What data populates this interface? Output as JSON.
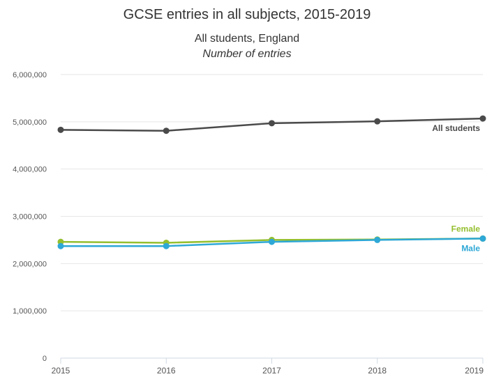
{
  "chart_data": {
    "type": "line",
    "title": "GCSE entries in all subjects, 2015-2019",
    "subtitle": "All students, England",
    "subtitle2": "Number of entries",
    "xlabel": "",
    "ylabel": "",
    "x": [
      "2015",
      "2016",
      "2017",
      "2018",
      "2019"
    ],
    "ylim": [
      0,
      6000000
    ],
    "yticks": [
      0,
      1000000,
      2000000,
      3000000,
      4000000,
      5000000,
      6000000
    ],
    "ytick_labels": [
      "0",
      "1,000,000",
      "2,000,000",
      "3,000,000",
      "4,000,000",
      "5,000,000",
      "6,000,000"
    ],
    "grid": true,
    "series": [
      {
        "name": "All students",
        "color": "#4a4a4a",
        "values": [
          4830000,
          4810000,
          4970000,
          5010000,
          5070000
        ]
      },
      {
        "name": "Female",
        "color": "#95bf2f",
        "values": [
          2460000,
          2440000,
          2500000,
          2510000,
          2530000
        ]
      },
      {
        "name": "Male",
        "color": "#2ea8d6",
        "values": [
          2370000,
          2370000,
          2460000,
          2500000,
          2530000
        ]
      }
    ]
  }
}
